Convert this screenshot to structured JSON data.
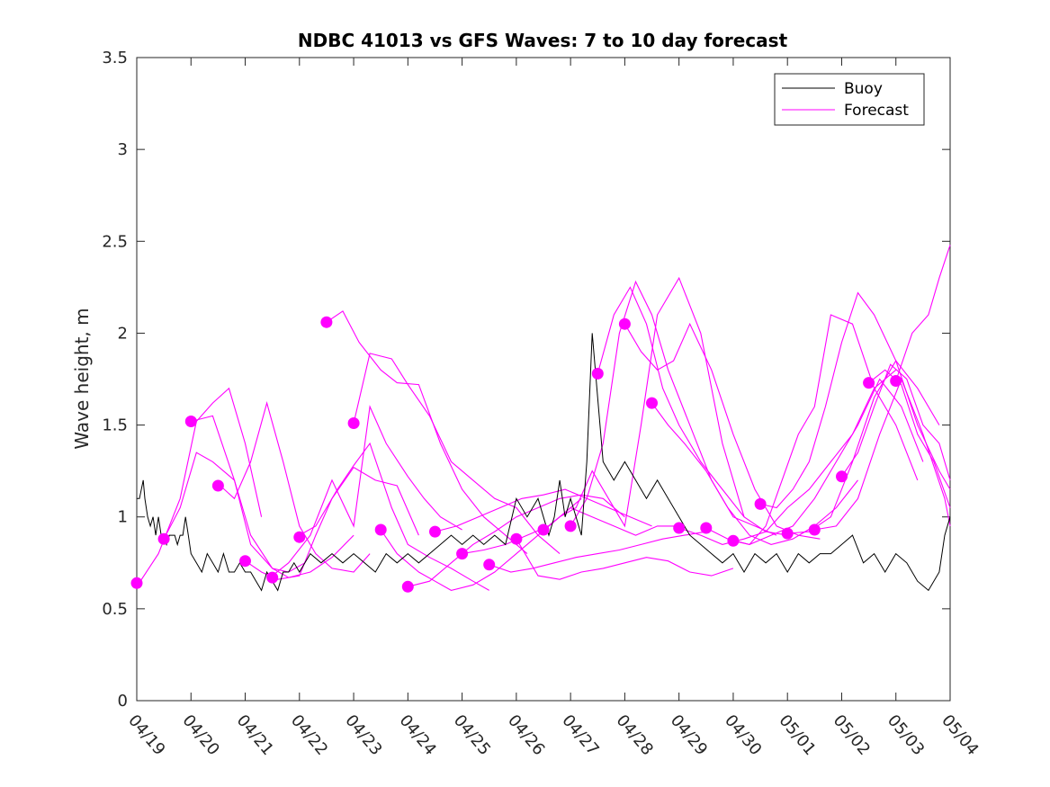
{
  "chart_data": {
    "type": "line",
    "title": "NDBC 41013 vs GFS Waves: 7 to 10 day forecast",
    "xlabel": "",
    "ylabel": "Wave height, m",
    "xlim": [
      "04/19",
      "05/04"
    ],
    "ylim": [
      0,
      3.5
    ],
    "xticks": [
      "04/19",
      "04/20",
      "04/21",
      "04/22",
      "04/23",
      "04/24",
      "04/25",
      "04/26",
      "04/27",
      "04/28",
      "04/29",
      "04/30",
      "05/01",
      "05/02",
      "05/03",
      "05/04"
    ],
    "yticks": [
      "0",
      "0.5",
      "1",
      "1.5",
      "2",
      "2.5",
      "3",
      "3.5"
    ],
    "grid": false,
    "legend": {
      "location": "top-right",
      "entries": [
        {
          "name": "Buoy",
          "color": "#000000"
        },
        {
          "name": "Forecast",
          "color": "#ff00ff"
        }
      ]
    },
    "colors": {
      "buoy": "#000000",
      "forecast": "#ff00ff",
      "axes": "#262626"
    },
    "buoy": {
      "x": [
        0,
        0.05,
        0.12,
        0.15,
        0.2,
        0.25,
        0.3,
        0.35,
        0.4,
        0.45,
        0.5,
        0.55,
        0.6,
        0.65,
        0.7,
        0.75,
        0.8,
        0.85,
        0.9,
        0.95,
        1.0,
        1.1,
        1.2,
        1.3,
        1.4,
        1.5,
        1.6,
        1.7,
        1.8,
        1.9,
        2.0,
        2.1,
        2.2,
        2.3,
        2.4,
        2.5,
        2.6,
        2.7,
        2.8,
        2.9,
        3.0,
        3.2,
        3.4,
        3.6,
        3.8,
        4.0,
        4.2,
        4.4,
        4.6,
        4.8,
        5.0,
        5.2,
        5.4,
        5.6,
        5.8,
        6.0,
        6.2,
        6.4,
        6.6,
        6.8,
        7.0,
        7.2,
        7.4,
        7.6,
        7.7,
        7.8,
        7.85,
        7.9,
        8.0,
        8.1,
        8.2,
        8.3,
        8.4,
        8.6,
        8.8,
        9.0,
        9.2,
        9.4,
        9.6,
        9.8,
        10.0,
        10.2,
        10.4,
        10.6,
        10.8,
        11.0,
        11.2,
        11.4,
        11.6,
        11.8,
        12.0,
        12.2,
        12.4,
        12.6,
        12.8,
        13.0,
        13.2,
        13.4,
        13.6,
        13.8,
        14.0,
        14.2,
        14.4,
        14.6,
        14.8,
        14.9,
        15.0
      ],
      "y": [
        1.1,
        1.1,
        1.2,
        1.1,
        1.0,
        0.95,
        1.0,
        0.9,
        1.0,
        0.9,
        0.9,
        0.85,
        0.9,
        0.9,
        0.9,
        0.85,
        0.9,
        0.9,
        1.0,
        0.9,
        0.8,
        0.75,
        0.7,
        0.8,
        0.75,
        0.7,
        0.8,
        0.7,
        0.7,
        0.75,
        0.7,
        0.7,
        0.65,
        0.6,
        0.7,
        0.65,
        0.6,
        0.7,
        0.7,
        0.75,
        0.7,
        0.8,
        0.75,
        0.8,
        0.75,
        0.8,
        0.75,
        0.7,
        0.8,
        0.75,
        0.8,
        0.75,
        0.8,
        0.85,
        0.9,
        0.85,
        0.9,
        0.85,
        0.9,
        0.85,
        1.1,
        1.0,
        1.1,
        0.9,
        1.0,
        1.2,
        1.1,
        1.0,
        1.1,
        1.0,
        0.9,
        1.3,
        2.0,
        1.3,
        1.2,
        1.3,
        1.2,
        1.1,
        1.2,
        1.1,
        1.0,
        0.9,
        0.85,
        0.8,
        0.75,
        0.8,
        0.7,
        0.8,
        0.75,
        0.8,
        0.7,
        0.8,
        0.75,
        0.8,
        0.8,
        0.85,
        0.9,
        0.75,
        0.8,
        0.7,
        0.8,
        0.75,
        0.65,
        0.6,
        0.7,
        0.9,
        1.0
      ]
    },
    "forecast_series": [
      {
        "x": [
          0,
          0.4,
          0.8,
          1.1,
          1.4,
          1.7,
          2.0,
          2.3
        ],
        "y": [
          0.62,
          0.8,
          1.1,
          1.52,
          1.62,
          1.7,
          1.4,
          1.0
        ]
      },
      {
        "x": [
          0.5,
          0.8,
          1.1,
          1.4,
          1.8,
          2.1,
          2.5,
          2.8,
          3.1
        ],
        "y": [
          0.88,
          1.05,
          1.35,
          1.3,
          1.2,
          0.85,
          0.72,
          0.7,
          0.75
        ]
      },
      {
        "x": [
          1.0,
          1.4,
          1.8,
          2.1,
          2.5,
          2.8,
          3.2,
          3.6,
          4.0
        ],
        "y": [
          1.52,
          1.55,
          1.2,
          0.9,
          0.72,
          0.67,
          0.7,
          0.78,
          0.9
        ]
      },
      {
        "x": [
          1.5,
          1.8,
          2.1,
          2.4,
          2.7,
          3.0,
          3.3,
          3.6,
          4.0,
          4.3
        ],
        "y": [
          1.18,
          1.1,
          1.3,
          1.62,
          1.3,
          0.95,
          0.8,
          0.72,
          0.7,
          0.8
        ]
      },
      {
        "x": [
          2.0,
          2.3,
          2.6,
          3.0,
          3.3,
          3.6,
          4.0,
          4.4,
          4.8,
          5.2
        ],
        "y": [
          0.76,
          0.7,
          0.66,
          0.68,
          0.9,
          1.1,
          1.27,
          1.2,
          1.17,
          0.9
        ]
      },
      {
        "x": [
          2.5,
          2.8,
          3.2,
          3.6,
          4.0,
          4.3,
          4.6,
          5.0,
          5.3,
          5.6,
          6.0
        ],
        "y": [
          0.68,
          0.75,
          0.9,
          1.2,
          0.95,
          1.6,
          1.4,
          1.22,
          1.1,
          1.0,
          0.93
        ]
      },
      {
        "x": [
          3.0,
          3.3,
          3.7,
          4.0,
          4.3,
          4.7,
          5.0,
          5.4,
          5.8,
          6.2,
          6.5
        ],
        "y": [
          0.9,
          0.95,
          1.15,
          1.28,
          1.4,
          1.05,
          0.85,
          0.78,
          0.72,
          0.65,
          0.6
        ]
      },
      {
        "x": [
          3.5,
          3.8,
          4.1,
          4.5,
          4.8,
          5.2,
          5.6,
          6.0,
          6.4,
          6.8,
          7.2
        ],
        "y": [
          2.06,
          2.12,
          1.95,
          1.8,
          1.73,
          1.72,
          1.4,
          1.15,
          1.0,
          0.9,
          0.8
        ]
      },
      {
        "x": [
          4.0,
          4.3,
          4.7,
          5.0,
          5.4,
          5.8,
          6.2,
          6.6,
          7.0,
          7.4,
          7.8
        ],
        "y": [
          1.51,
          1.89,
          1.86,
          1.72,
          1.55,
          1.3,
          1.2,
          1.1,
          1.05,
          0.9,
          0.8
        ]
      },
      {
        "x": [
          4.5,
          4.8,
          5.2,
          5.5,
          5.8,
          6.2,
          6.6,
          7.0,
          7.4,
          7.8,
          8.2
        ],
        "y": [
          0.93,
          0.8,
          0.7,
          0.65,
          0.6,
          0.63,
          0.7,
          0.8,
          0.9,
          1.0,
          1.1
        ]
      },
      {
        "x": [
          5.0,
          5.4,
          5.8,
          6.2,
          6.6,
          7.0,
          7.4,
          7.8,
          8.2,
          8.6,
          9.0
        ],
        "y": [
          0.62,
          0.65,
          0.75,
          0.85,
          0.92,
          1.0,
          1.05,
          1.1,
          1.12,
          1.1,
          1.0
        ]
      },
      {
        "x": [
          5.5,
          5.9,
          6.3,
          6.7,
          7.1,
          7.5,
          7.9,
          8.3,
          8.7,
          9.1,
          9.5
        ],
        "y": [
          0.92,
          0.95,
          1.0,
          1.05,
          1.1,
          1.12,
          1.15,
          1.1,
          1.05,
          1.0,
          0.95
        ]
      },
      {
        "x": [
          6.0,
          6.4,
          6.8,
          7.2,
          7.6,
          8.0,
          8.4,
          8.8,
          9.2,
          9.6,
          10.0
        ],
        "y": [
          0.8,
          0.82,
          0.85,
          0.9,
          0.95,
          1.05,
          1.0,
          0.95,
          0.9,
          0.95,
          0.95
        ]
      },
      {
        "x": [
          6.5,
          6.9,
          7.3,
          7.7,
          8.1,
          8.5,
          8.9,
          9.3,
          9.7,
          10.1,
          10.5
        ],
        "y": [
          0.74,
          0.7,
          0.72,
          0.75,
          0.78,
          0.8,
          0.82,
          0.85,
          0.88,
          0.9,
          0.92
        ]
      },
      {
        "x": [
          7.0,
          7.4,
          7.8,
          8.2,
          8.6,
          9.0,
          9.4,
          9.8,
          10.2,
          10.6,
          11.0
        ],
        "y": [
          0.88,
          0.68,
          0.66,
          0.7,
          0.72,
          0.75,
          0.78,
          0.76,
          0.7,
          0.68,
          0.72
        ]
      },
      {
        "x": [
          7.5,
          7.8,
          8.1,
          8.4,
          8.7,
          9.0,
          9.3,
          9.6,
          10.0,
          10.4,
          10.8,
          11.2
        ],
        "y": [
          0.93,
          1.0,
          1.05,
          1.25,
          1.1,
          0.95,
          1.5,
          2.1,
          2.3,
          2.0,
          1.4,
          1.0
        ]
      },
      {
        "x": [
          8.0,
          8.3,
          8.6,
          8.9,
          9.2,
          9.5,
          9.8,
          10.2,
          10.6,
          11.0,
          11.4,
          11.8
        ],
        "y": [
          0.95,
          1.1,
          1.4,
          2.0,
          2.28,
          2.1,
          1.8,
          1.5,
          1.2,
          1.0,
          0.95,
          0.9
        ]
      },
      {
        "x": [
          8.5,
          8.8,
          9.1,
          9.4,
          9.7,
          10.0,
          10.4,
          10.8,
          11.2,
          11.6,
          12.0
        ],
        "y": [
          1.78,
          2.1,
          2.25,
          2.05,
          1.7,
          1.5,
          1.3,
          1.15,
          1.0,
          0.92,
          0.9
        ]
      },
      {
        "x": [
          9.0,
          9.3,
          9.6,
          9.9,
          10.2,
          10.6,
          11.0,
          11.4,
          11.8,
          12.2,
          12.6
        ],
        "y": [
          2.05,
          1.9,
          1.8,
          1.85,
          2.05,
          1.8,
          1.45,
          1.15,
          0.95,
          0.9,
          0.88
        ]
      },
      {
        "x": [
          9.5,
          9.8,
          10.1,
          10.5,
          10.9,
          11.3,
          11.7,
          12.1,
          12.5,
          12.9,
          13.3
        ],
        "y": [
          1.62,
          1.5,
          1.4,
          1.25,
          1.05,
          0.9,
          0.85,
          0.88,
          0.95,
          1.05,
          1.2
        ]
      },
      {
        "x": [
          10.0,
          10.4,
          10.8,
          11.2,
          11.6,
          12.0,
          12.4,
          12.8,
          13.2,
          13.6,
          14.0
        ],
        "y": [
          0.94,
          0.9,
          0.85,
          0.88,
          0.92,
          1.05,
          1.15,
          1.3,
          1.45,
          1.7,
          1.8
        ]
      },
      {
        "x": [
          10.5,
          10.9,
          11.3,
          11.7,
          12.1,
          12.5,
          12.9,
          13.3,
          13.7,
          14.1,
          14.5
        ],
        "y": [
          0.94,
          0.88,
          0.85,
          0.9,
          0.95,
          1.1,
          1.3,
          1.5,
          1.75,
          1.6,
          1.3
        ]
      },
      {
        "x": [
          11.0,
          11.3,
          11.6,
          11.9,
          12.2,
          12.5,
          12.8,
          13.2,
          13.6,
          14.0,
          14.4
        ],
        "y": [
          0.87,
          0.85,
          0.95,
          1.2,
          1.45,
          1.6,
          2.1,
          2.05,
          1.7,
          1.5,
          1.2
        ]
      },
      {
        "x": [
          11.5,
          11.8,
          12.1,
          12.4,
          12.7,
          13.0,
          13.3,
          13.6,
          14.0,
          14.4,
          14.8
        ],
        "y": [
          1.07,
          1.05,
          1.15,
          1.3,
          1.6,
          1.95,
          2.22,
          2.1,
          1.85,
          1.7,
          1.5
        ]
      },
      {
        "x": [
          12.0,
          12.4,
          12.8,
          13.2,
          13.6,
          14.0,
          14.4,
          14.8,
          15.0
        ],
        "y": [
          0.91,
          0.92,
          1.0,
          1.3,
          1.65,
          1.85,
          1.5,
          1.25,
          1.15
        ]
      },
      {
        "x": [
          12.5,
          12.9,
          13.3,
          13.7,
          14.1,
          14.5,
          14.9,
          15.0
        ],
        "y": [
          0.93,
          0.95,
          1.1,
          1.45,
          1.75,
          1.45,
          1.1,
          0.95
        ]
      },
      {
        "x": [
          13.0,
          13.3,
          13.6,
          13.9,
          14.2,
          14.5,
          14.8,
          15.0
        ],
        "y": [
          1.22,
          1.35,
          1.6,
          1.83,
          1.75,
          1.5,
          1.4,
          1.2
        ]
      },
      {
        "x": [
          13.5,
          13.8,
          14.1,
          14.4,
          14.7,
          15.0
        ],
        "y": [
          1.73,
          1.8,
          1.72,
          1.45,
          1.3,
          1.05
        ]
      },
      {
        "x": [
          14.0,
          14.3,
          14.6,
          14.8,
          15.0
        ],
        "y": [
          1.74,
          2.0,
          2.1,
          2.3,
          2.48
        ]
      }
    ],
    "forecast_markers": {
      "x": [
        0,
        0.5,
        1.0,
        1.5,
        2.0,
        2.5,
        3.0,
        3.5,
        4.0,
        4.5,
        5.0,
        5.5,
        6.0,
        6.5,
        7.0,
        7.5,
        8.0,
        8.5,
        9.0,
        9.5,
        10.0,
        10.5,
        11.0,
        11.5,
        12.0,
        12.5,
        13.0,
        13.5,
        14.0
      ],
      "y": [
        0.64,
        0.88,
        1.52,
        1.17,
        0.76,
        0.67,
        0.89,
        2.06,
        1.51,
        0.93,
        0.62,
        0.92,
        0.8,
        0.74,
        0.88,
        0.93,
        0.95,
        1.78,
        2.05,
        1.62,
        0.94,
        0.94,
        0.87,
        1.07,
        0.91,
        0.93,
        1.22,
        1.73,
        1.74
      ]
    }
  }
}
